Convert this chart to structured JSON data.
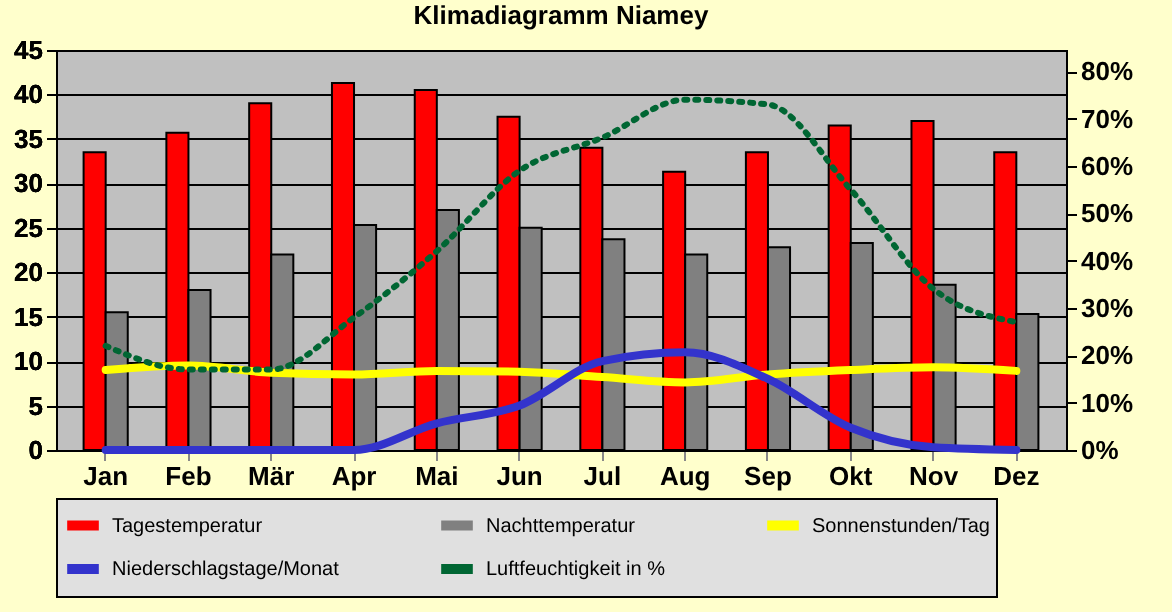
{
  "chart_data": {
    "type": "bar",
    "title": "Klimadiagramm Niamey",
    "categories": [
      "Jan",
      "Feb",
      "Mär",
      "Apr",
      "Mai",
      "Jun",
      "Jul",
      "Aug",
      "Sep",
      "Okt",
      "Nov",
      "Dez"
    ],
    "series": [
      {
        "name": "Tagestemperatur",
        "color": "#ff0000",
        "values": [
          33.5,
          35.7,
          39,
          41.3,
          40.5,
          37.5,
          34,
          31.3,
          33.5,
          36.5,
          37,
          33.5
        ]
      },
      {
        "name": "Nachttemperatur",
        "color": "#808080",
        "values": [
          15.5,
          18,
          22,
          25.3,
          27,
          25,
          23.7,
          22,
          22.8,
          23.3,
          18.6,
          15.3
        ]
      },
      {
        "name": "Sonnenstunden/Tag",
        "type": "line",
        "color": "#ffff00",
        "values": [
          9,
          9.5,
          8.7,
          8.5,
          8.9,
          8.8,
          8.2,
          7.6,
          8.5,
          9,
          9.3,
          8.9
        ]
      },
      {
        "name": "Niederschlagstage/Monat",
        "type": "line",
        "color": "#3333cc",
        "values": [
          0,
          0,
          0,
          0,
          3,
          5,
          10,
          11,
          8,
          2.5,
          0.3,
          0
        ]
      },
      {
        "name": "Luftfeuchtigkeit in %",
        "type": "line",
        "color": "#006633",
        "line_style": "dotted",
        "axis": "y2",
        "values": [
          22,
          17,
          17,
          28,
          42,
          59,
          66,
          74,
          73,
          55,
          34,
          27
        ]
      }
    ],
    "ylim": [
      0,
      45
    ],
    "yticks": [
      0,
      5,
      10,
      15,
      20,
      25,
      30,
      35,
      40,
      45
    ],
    "y2lim": [
      0,
      84.5
    ],
    "y2ticks": [
      {
        "value": 0,
        "label": "0%"
      },
      {
        "value": 10,
        "label": "10%"
      },
      {
        "value": 20,
        "label": "20%"
      },
      {
        "value": 30,
        "label": "30%"
      },
      {
        "value": 40,
        "label": "40%"
      },
      {
        "value": 50,
        "label": "50%"
      },
      {
        "value": 60,
        "label": "60%"
      },
      {
        "value": 70,
        "label": "70%"
      },
      {
        "value": 80,
        "label": "80%"
      }
    ],
    "grid": "y",
    "legend": "bottom",
    "marker": "none",
    "line_style": "solid"
  }
}
